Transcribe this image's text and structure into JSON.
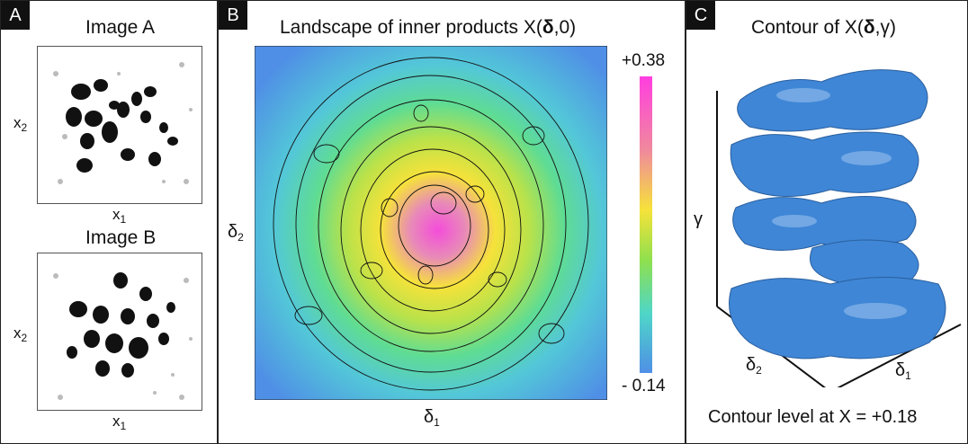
{
  "panelA": {
    "tag": "A",
    "imageA_title": "Image A",
    "imageB_title": "Image B",
    "x1": "x",
    "x1_sub": "1",
    "x2": "x",
    "x2_sub": "2"
  },
  "panelB": {
    "tag": "B",
    "title_pre": "Landscape of inner products X(",
    "title_bold": "δ",
    "title_post": ",0)",
    "colorbar_max": "+0.38",
    "colorbar_min": "- 0.14",
    "xlabel": "δ",
    "xlabel_sub": "1",
    "ylabel": "δ",
    "ylabel_sub": "2"
  },
  "panelC": {
    "tag": "C",
    "title_pre": "Contour of X(",
    "title_bold": "δ",
    "title_post": ",γ)",
    "gamma": "γ",
    "d2": "δ",
    "d2_sub": "2",
    "d1": "δ",
    "d1_sub": "1",
    "caption": "Contour level at X = +0.18",
    "surface_color": "#3f86d6"
  }
}
